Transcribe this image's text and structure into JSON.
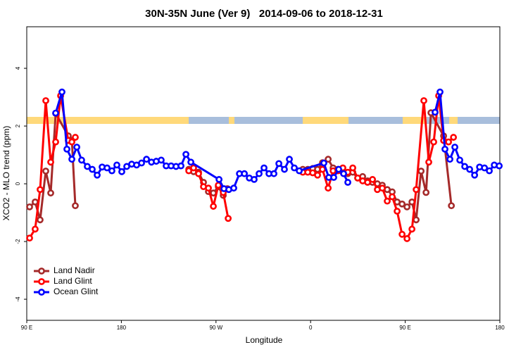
{
  "chart_data": {
    "type": "line",
    "title": "30N-35N June (Ver 9)   2014-09-06 to 2018-12-31",
    "x_label": "Longitude",
    "y_label": "XCO2 - MLO trend (ppm)",
    "xlim": [
      90,
      540
    ],
    "ylim": [
      -4.73,
      5.44
    ],
    "xticks": [
      {
        "value": 90,
        "label": "90 E"
      },
      180,
      {
        "value": 270,
        "label": "90 W"
      },
      {
        "value": 360,
        "label": "0"
      },
      {
        "value": 450,
        "label": "90 E"
      },
      {
        "value": 540,
        "label": "180"
      }
    ],
    "yticks": [
      -4,
      -2,
      0,
      2,
      4
    ],
    "legend": "bottom-left",
    "series": [
      {
        "name": "Land Nadir",
        "color": "#a52a2a",
        "x": [
          92.7,
          98.0,
          102.7,
          108.1,
          112.8,
          117.5,
          129.5,
          132.9,
          136.2,
          null,
          244.1,
          248.7,
          253.4,
          258.1,
          262.8,
          267.5,
          272.2,
          276.9,
          280.9,
          null,
          352.6,
          357.3,
          362.0,
          366.6,
          371.3,
          376.7,
          381.4,
          386.0,
          390.7,
          395.4,
          400.1,
          404.8,
          409.5,
          414.2,
          418.9,
          423.5,
          428.2,
          432.9,
          437.6,
          442.3,
          447.0,
          451.7,
          456.4,
          460.4,
          465.1,
          469.8,
          474.5,
          486.5,
          493.9
        ],
        "values": [
          -0.8,
          -0.63,
          -1.25,
          0.44,
          -0.32,
          2.44,
          1.66,
          1.5,
          -0.76,
          null,
          0.5,
          0.42,
          0.4,
          0.05,
          -0.27,
          -0.32,
          -0.1,
          -0.4,
          -0.17,
          null,
          0.5,
          0.5,
          0.53,
          0.5,
          0.73,
          0.85,
          0.55,
          0.5,
          0.4,
          0.35,
          0.4,
          0.2,
          0.25,
          0.1,
          0.05,
          0.0,
          -0.05,
          -0.2,
          -0.28,
          -0.63,
          -0.7,
          -0.8,
          -0.63,
          -1.25,
          0.44,
          -0.3,
          2.46,
          1.66,
          -0.76
        ]
      },
      {
        "name": "Land Glint",
        "color": "#ff0000",
        "x": [
          92.7,
          98.0,
          102.7,
          108.1,
          112.8,
          117.5,
          122.2,
          129.5,
          132.9,
          136.2,
          null,
          244.1,
          248.7,
          253.4,
          258.1,
          262.8,
          267.5,
          272.2,
          276.9,
          281.6,
          null,
          352.6,
          357.3,
          362.0,
          366.6,
          371.3,
          376.7,
          381.4,
          386.0,
          390.7,
          395.4,
          400.1,
          404.8,
          409.5,
          414.2,
          418.9,
          423.5,
          428.2,
          432.9,
          437.6,
          442.3,
          447.0,
          451.7,
          456.4,
          460.4,
          467.7,
          472.4,
          477.1,
          481.8,
          486.5,
          491.2,
          495.9
        ],
        "values": [
          -1.88,
          -1.57,
          -0.2,
          2.88,
          0.75,
          1.45,
          3.05,
          1.5,
          1.45,
          1.61,
          null,
          0.45,
          0.55,
          0.35,
          -0.1,
          -0.15,
          -0.78,
          -0.05,
          -0.3,
          -1.2,
          null,
          0.4,
          0.4,
          0.38,
          0.3,
          0.5,
          -0.15,
          0.45,
          0.45,
          0.55,
          0.4,
          0.55,
          0.2,
          0.1,
          0.05,
          0.15,
          -0.2,
          -0.15,
          -0.6,
          -0.45,
          -0.95,
          -1.75,
          -1.9,
          -1.57,
          -0.2,
          2.88,
          0.75,
          1.45,
          3.05,
          1.5,
          1.45,
          1.61
        ]
      },
      {
        "name": "Ocean Glint",
        "color": "#0000ff",
        "x": [
          117.5,
          123.5,
          128.2,
          132.9,
          137.6,
          142.2,
          147.6,
          152.3,
          157.0,
          161.7,
          166.4,
          171.0,
          175.7,
          180.4,
          185.1,
          189.8,
          194.5,
          199.2,
          203.9,
          208.6,
          213.2,
          217.9,
          222.6,
          227.3,
          232.0,
          236.7,
          241.4,
          246.1,
          272.9,
          277.6,
          282.2,
          286.9,
          292.3,
          297.0,
          301.7,
          306.3,
          311.0,
          315.7,
          320.4,
          325.1,
          329.8,
          335.1,
          339.8,
          344.5,
          349.2,
          372.6,
          377.3,
          382.0,
          386.7,
          391.4,
          395.4,
          null,
          478.4,
          483.1,
          487.8,
          492.5,
          497.2,
          501.9,
          506.6,
          511.3,
          516.0,
          520.7,
          525.4,
          530.0,
          534.7,
          539.4
        ],
        "values": [
          2.45,
          3.18,
          1.2,
          0.85,
          1.27,
          0.82,
          0.6,
          0.5,
          0.3,
          0.58,
          0.55,
          0.45,
          0.65,
          0.42,
          0.6,
          0.68,
          0.65,
          0.72,
          0.85,
          0.75,
          0.78,
          0.82,
          0.62,
          0.62,
          0.6,
          0.62,
          1.02,
          0.75,
          0.15,
          -0.17,
          -0.2,
          -0.15,
          0.35,
          0.35,
          0.2,
          0.15,
          0.35,
          0.55,
          0.35,
          0.35,
          0.7,
          0.5,
          0.85,
          0.55,
          0.45,
          0.72,
          0.22,
          0.22,
          0.5,
          0.35,
          0.05,
          null,
          2.48,
          3.18,
          1.2,
          0.85,
          1.27,
          0.82,
          0.6,
          0.5,
          0.3,
          0.58,
          0.55,
          0.45,
          0.65,
          0.62
        ]
      }
    ]
  }
}
